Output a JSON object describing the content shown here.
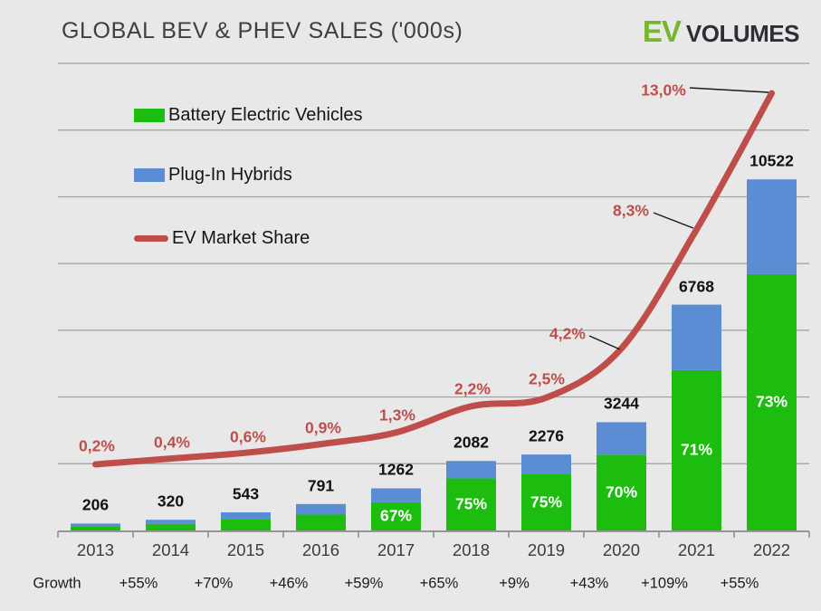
{
  "page": {
    "background": "#e8e8e8"
  },
  "header": {
    "title": "GLOBAL BEV & PHEV SALES ('000s)",
    "logo": {
      "ev": "EV",
      "volumes": "VOLUMES",
      "ev_color": "#76b62c",
      "volumes_color": "#2e2e38"
    }
  },
  "legend": {
    "items": [
      {
        "label": "Battery Electric Vehicles",
        "swatch": "rect",
        "color": "#1dbd0f"
      },
      {
        "label": "Plug-In Hybrids",
        "swatch": "rect",
        "color": "#5b8dd5"
      },
      {
        "label": "EV Market Share",
        "swatch": "line",
        "color": "#bf4e4b"
      }
    ]
  },
  "chart_data": {
    "type": "bar",
    "subtype": "stacked-bars-with-line-overlay",
    "title": "GLOBAL BEV & PHEV SALES ('000s)",
    "categories": [
      "2013",
      "2014",
      "2015",
      "2016",
      "2017",
      "2018",
      "2019",
      "2020",
      "2021",
      "2022"
    ],
    "series": [
      {
        "name": "Battery Electric Vehicles",
        "type": "bar",
        "color": "#1dbd0f",
        "values": [
          119,
          198,
          337,
          475,
          846,
          1562,
          1707,
          2271,
          4805,
          7681
        ]
      },
      {
        "name": "Plug-In Hybrids",
        "type": "bar",
        "color": "#5b8dd5",
        "values": [
          87,
          122,
          206,
          316,
          416,
          520,
          569,
          973,
          1963,
          2841
        ]
      }
    ],
    "totals": [
      206,
      320,
      543,
      791,
      1262,
      2082,
      2276,
      3244,
      6768,
      10522
    ],
    "bev_share_labels": [
      "",
      "",
      "",
      "",
      "67%",
      "75%",
      "75%",
      "70%",
      "71%",
      "73%"
    ],
    "market_share": {
      "name": "EV Market Share",
      "type": "line",
      "color": "#bf4e4b",
      "values": [
        0.2,
        0.4,
        0.6,
        0.9,
        1.3,
        2.2,
        2.5,
        4.2,
        8.3,
        13.0
      ],
      "labels": [
        "0,2%",
        "0,4%",
        "0,6%",
        "0,9%",
        "1,3%",
        "2,2%",
        "2,5%",
        "4,2%",
        "8,3%",
        "13,0%"
      ]
    },
    "growth": {
      "label": "Growth",
      "values": [
        "+55%",
        "+70%",
        "+46%",
        "+59%",
        "+65%",
        "+9%",
        "+43%",
        "+109%",
        "+55%"
      ]
    },
    "xlabel": "",
    "ylabel": "",
    "ylim": [
      0,
      14000
    ],
    "gridline_step": 2000,
    "grid": true,
    "legend_position": "inside-top-left",
    "colors": {
      "grid": "#9e9e9e",
      "axis": "#8a8a8a",
      "leader": "#1a1a1a",
      "total_label": "#111111",
      "share_label": "#ffffff",
      "year_label": "#3c3c3c",
      "growth_label": "#1c1c1c"
    }
  }
}
